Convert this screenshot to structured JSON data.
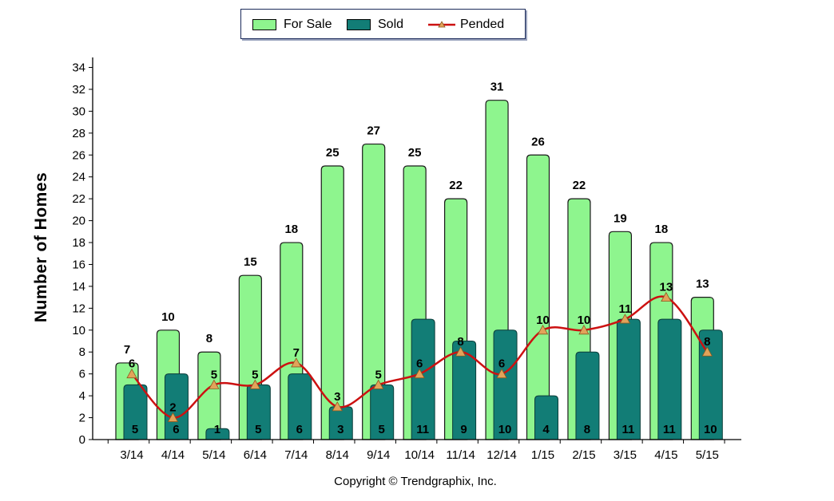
{
  "chart_data": {
    "type": "bar",
    "categories": [
      "3/14",
      "4/14",
      "5/14",
      "6/14",
      "7/14",
      "8/14",
      "9/14",
      "10/14",
      "11/14",
      "12/14",
      "1/15",
      "2/15",
      "3/15",
      "4/15",
      "5/15"
    ],
    "series": [
      {
        "name": "For Sale",
        "kind": "bar",
        "color": "#8ef58e",
        "values": [
          7,
          10,
          8,
          15,
          18,
          25,
          27,
          25,
          22,
          31,
          26,
          22,
          19,
          18,
          13
        ]
      },
      {
        "name": "Sold",
        "kind": "bar",
        "color": "#127d76",
        "values": [
          5,
          6,
          1,
          5,
          6,
          3,
          5,
          11,
          9,
          10,
          4,
          8,
          11,
          11,
          10
        ]
      },
      {
        "name": "Pended",
        "kind": "line",
        "color": "#cc1111",
        "marker_color": "#e2a35a",
        "values": [
          6,
          2,
          5,
          5,
          7,
          3,
          5,
          6,
          8,
          6,
          10,
          10,
          11,
          13,
          8
        ]
      }
    ],
    "title": "",
    "xlabel": "",
    "ylabel": "Number of Homes",
    "ylim": [
      0,
      34
    ],
    "yticks": [
      0,
      2,
      4,
      6,
      8,
      10,
      12,
      14,
      16,
      18,
      20,
      22,
      24,
      26,
      28,
      30,
      32,
      34
    ],
    "grid": false,
    "legend_position": "top-center"
  },
  "footer": {
    "copyright": "Copyright © Trendgraphix, Inc."
  }
}
